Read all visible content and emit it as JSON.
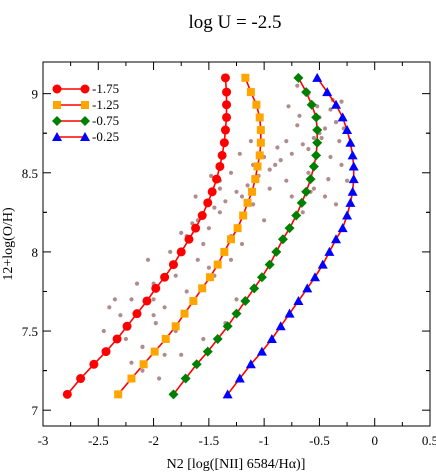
{
  "chart_data": {
    "type": "scatter",
    "title": "log U = -2.5",
    "xlabel": "N2 [log([NII] 6584/Hα)]",
    "ylabel": "12+log(O/H)",
    "xlim": [
      -3,
      0.5
    ],
    "ylim": [
      6.9,
      9.2
    ],
    "xticks": [
      "-3",
      "-2.5",
      "-2",
      "-1.5",
      "-1",
      "-0.5",
      "0",
      "0.5"
    ],
    "yticks": [
      "7",
      "7.5",
      "8",
      "8.5",
      "9"
    ],
    "legend_position": "top-left",
    "grid": false,
    "series": [
      {
        "name": "-1.75",
        "marker": "circle",
        "marker_color": "#ff0000",
        "line_color": "#ff0000",
        "x": [
          -2.78,
          -2.66,
          -2.54,
          -2.43,
          -2.33,
          -2.24,
          -2.15,
          -2.06,
          -1.98,
          -1.9,
          -1.82,
          -1.75,
          -1.68,
          -1.62,
          -1.56,
          -1.51,
          -1.47,
          -1.43,
          -1.4,
          -1.38,
          -1.36,
          -1.35,
          -1.34,
          -1.34,
          -1.34,
          -1.35
        ],
        "y": [
          7.1,
          7.2,
          7.29,
          7.37,
          7.45,
          7.53,
          7.61,
          7.69,
          7.77,
          7.84,
          7.92,
          8.0,
          8.08,
          8.15,
          8.23,
          8.31,
          8.38,
          8.46,
          8.54,
          8.61,
          8.69,
          8.77,
          8.85,
          8.93,
          9.01,
          9.1
        ]
      },
      {
        "name": "-1.25",
        "marker": "square",
        "marker_color": "#ffa500",
        "line_color": "#ff0000",
        "x": [
          -2.32,
          -2.2,
          -2.09,
          -1.99,
          -1.89,
          -1.8,
          -1.72,
          -1.64,
          -1.56,
          -1.49,
          -1.42,
          -1.36,
          -1.3,
          -1.24,
          -1.19,
          -1.15,
          -1.11,
          -1.08,
          -1.06,
          -1.04,
          -1.03,
          -1.03,
          -1.04,
          -1.07,
          -1.12,
          -1.17
        ],
        "y": [
          7.1,
          7.2,
          7.29,
          7.37,
          7.45,
          7.53,
          7.61,
          7.69,
          7.77,
          7.84,
          7.92,
          8.0,
          8.08,
          8.15,
          8.23,
          8.31,
          8.38,
          8.46,
          8.54,
          8.61,
          8.69,
          8.77,
          8.85,
          8.93,
          9.01,
          9.1
        ]
      },
      {
        "name": "-0.75",
        "marker": "diamond",
        "marker_color": "#008000",
        "line_color": "#ff0000",
        "x": [
          -1.82,
          -1.71,
          -1.61,
          -1.51,
          -1.42,
          -1.33,
          -1.25,
          -1.17,
          -1.09,
          -1.02,
          -0.95,
          -0.89,
          -0.83,
          -0.77,
          -0.71,
          -0.66,
          -0.62,
          -0.58,
          -0.55,
          -0.53,
          -0.52,
          -0.52,
          -0.53,
          -0.57,
          -0.62,
          -0.69
        ],
        "y": [
          7.1,
          7.2,
          7.29,
          7.37,
          7.45,
          7.53,
          7.61,
          7.69,
          7.77,
          7.84,
          7.92,
          8.0,
          8.08,
          8.15,
          8.23,
          8.31,
          8.38,
          8.46,
          8.54,
          8.61,
          8.69,
          8.77,
          8.85,
          8.93,
          9.01,
          9.1
        ]
      },
      {
        "name": "-0.25",
        "marker": "triangle",
        "marker_color": "#0000ff",
        "line_color": "#ff0000",
        "x": [
          -1.33,
          -1.22,
          -1.12,
          -1.02,
          -0.93,
          -0.85,
          -0.77,
          -0.69,
          -0.61,
          -0.54,
          -0.47,
          -0.41,
          -0.35,
          -0.29,
          -0.25,
          -0.22,
          -0.2,
          -0.19,
          -0.19,
          -0.2,
          -0.22,
          -0.25,
          -0.29,
          -0.35,
          -0.43,
          -0.52
        ],
        "y": [
          7.1,
          7.2,
          7.29,
          7.37,
          7.45,
          7.53,
          7.61,
          7.69,
          7.77,
          7.84,
          7.92,
          8.0,
          8.08,
          8.15,
          8.23,
          8.31,
          8.38,
          8.46,
          8.54,
          8.61,
          8.69,
          8.77,
          8.85,
          8.93,
          9.01,
          9.1
        ]
      }
    ],
    "background_points": {
      "color": "#b08c8c",
      "x": [
        -1.98,
        -2.1,
        -2.2,
        -2.45,
        -2.1,
        -2.05,
        -1.7,
        -1.55,
        -1.6,
        -1.8,
        -1.9,
        -2.0,
        -1.4,
        -1.4,
        -1.3,
        -1.2,
        -1.1,
        -1.0,
        -0.9,
        -0.8,
        -0.7,
        -0.6,
        -0.5,
        -0.4,
        -0.3,
        -0.3,
        -0.4,
        -0.5,
        -0.6,
        -0.7,
        -1.3,
        -1.5,
        -1.7,
        -2.0,
        -2.25,
        -2.3,
        -2.4,
        -1.85,
        -1.75,
        -1.65,
        -1.55,
        -1.45,
        -1.35,
        -1.25,
        -1.15,
        -1.05,
        -0.95,
        -0.85,
        -0.75,
        -0.65,
        -0.55,
        -0.45,
        -0.35,
        -1.9,
        -2.2,
        -2.0,
        -1.6,
        -1.8,
        -2.1,
        -1.5,
        -1.45,
        -1.3,
        -1.2,
        -1.0,
        -0.8,
        -0.6,
        -0.55,
        -0.45,
        -0.35,
        -1.25,
        -1.35,
        -1.55,
        -1.75,
        -1.95,
        -2.15,
        -2.35,
        -1.5,
        -1.4,
        -1.1,
        -0.95,
        -0.75,
        -0.65,
        -1.62,
        -1.48,
        -1.22,
        -1.12,
        -0.88,
        -0.78,
        -0.68,
        -0.52,
        -0.42,
        -0.32,
        -0.25,
        -0.28,
        -0.38,
        -0.48,
        -0.58
      ],
      "y": [
        7.55,
        7.4,
        7.3,
        7.5,
        7.25,
        7.95,
        8.1,
        8.05,
        8.2,
        7.85,
        7.65,
        7.7,
        8.25,
        8.4,
        8.5,
        8.35,
        8.3,
        8.6,
        8.55,
        8.7,
        8.8,
        8.65,
        8.75,
        8.6,
        8.55,
        8.95,
        8.9,
        8.85,
        9.0,
        9.05,
        8.1,
        7.9,
        7.75,
        7.6,
        7.45,
        7.6,
        7.65,
        8.0,
        8.12,
        8.18,
        8.22,
        8.28,
        8.32,
        8.38,
        8.42,
        8.48,
        8.52,
        8.58,
        8.62,
        8.68,
        8.72,
        8.78,
        8.82,
        7.35,
        7.7,
        7.8,
        7.95,
        7.5,
        7.4,
        8.15,
        7.85,
        7.95,
        8.05,
        8.2,
        8.45,
        8.5,
        8.4,
        8.35,
        8.3,
        7.7,
        7.55,
        7.45,
        7.35,
        7.2,
        7.8,
        7.7,
        8.3,
        8.45,
        8.55,
        8.4,
        8.35,
        8.25,
        8.35,
        8.48,
        8.62,
        8.7,
        8.66,
        8.92,
        8.86,
        8.92,
        8.46,
        8.7,
        8.45,
        8.78,
        8.96,
        8.72,
        8.38
      ]
    }
  }
}
